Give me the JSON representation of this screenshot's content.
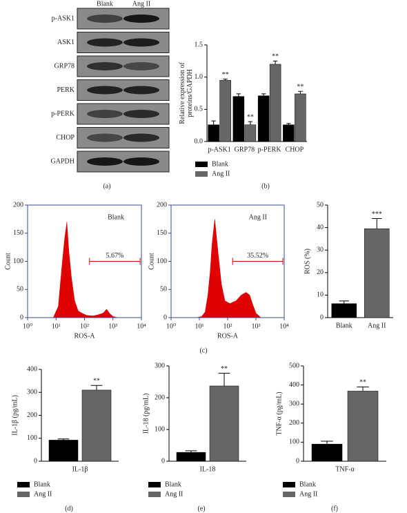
{
  "blot": {
    "columns": [
      "Blank",
      "Ang II"
    ],
    "rows": [
      "p-ASK1",
      "ASK1",
      "GRP78",
      "PERK",
      "p-PERK",
      "CHOP",
      "GAPDH"
    ],
    "caption": "(a)"
  },
  "chart_data": [
    {
      "type": "bar",
      "ylabel": [
        "Relative expression of",
        "proteins/GAPDH"
      ],
      "categories": [
        "p-ASK1",
        "GRP78",
        "p-PERK",
        "CHOP"
      ],
      "series": [
        {
          "name": "Blank",
          "color": "#000000",
          "values": [
            0.26,
            0.7,
            0.71,
            0.26
          ],
          "errors": [
            0.06,
            0.04,
            0.03,
            0.02
          ]
        },
        {
          "name": "Ang II",
          "color": "#666666",
          "values": [
            0.95,
            0.26,
            1.2,
            0.74
          ],
          "errors": [
            0.02,
            0.05,
            0.05,
            0.04
          ],
          "annotation": "**"
        }
      ],
      "ylim": [
        0,
        1.5
      ],
      "yticks": [
        {
          "value": 0,
          "label": "0.0"
        },
        {
          "value": 0.5,
          "label": "0.5"
        },
        {
          "value": 1,
          "label": "1.0"
        },
        {
          "value": 1.5,
          "label": "1.5"
        }
      ],
      "caption": "(b)"
    },
    {
      "type": "area",
      "title": "Blank",
      "xlabel": "ROS-A",
      "ylabel": "Count",
      "color": "#e00000",
      "log_x": true,
      "x": [
        8,
        12,
        16,
        20,
        24,
        28,
        35,
        45,
        60,
        80,
        120,
        200,
        300,
        450,
        600,
        750,
        1000,
        1500
      ],
      "values": [
        0,
        20,
        90,
        140,
        170,
        120,
        70,
        30,
        12,
        8,
        4,
        3,
        5,
        8,
        15,
        8,
        2,
        0
      ],
      "xlim": [
        1,
        10000
      ],
      "xticks": [
        {
          "value": 1,
          "label": "10⁰"
        },
        {
          "value": 10,
          "label": "10¹"
        },
        {
          "value": 100,
          "label": "10²"
        },
        {
          "value": 1000,
          "label": "10³"
        },
        {
          "value": 10000,
          "label": "10⁴"
        }
      ],
      "ylim": [
        0,
        200
      ],
      "yticks": [
        0,
        50,
        100,
        150,
        200
      ],
      "gate": [
        150,
        9000
      ],
      "gate_label": "5.67%"
    },
    {
      "type": "area",
      "title": "Ang II",
      "xlabel": "ROS-A",
      "ylabel": "Count",
      "color": "#e00000",
      "log_x": true,
      "x": [
        8,
        12,
        16,
        20,
        24,
        28,
        35,
        45,
        60,
        80,
        120,
        200,
        300,
        450,
        600,
        750,
        1000,
        1500
      ],
      "values": [
        0,
        2,
        10,
        40,
        80,
        130,
        175,
        120,
        60,
        30,
        25,
        30,
        40,
        45,
        40,
        25,
        8,
        0
      ],
      "xlim": [
        1,
        10000
      ],
      "xticks": [
        {
          "value": 1,
          "label": "10⁰"
        },
        {
          "value": 10,
          "label": "10¹"
        },
        {
          "value": 100,
          "label": "10²"
        },
        {
          "value": 1000,
          "label": "10³"
        },
        {
          "value": 10000,
          "label": "10⁴"
        }
      ],
      "ylim": [
        0,
        200
      ],
      "yticks": [
        0,
        50,
        100,
        150,
        200
      ],
      "gate": [
        150,
        9000
      ],
      "gate_label": "35.52%",
      "caption": "(c)"
    },
    {
      "type": "bar",
      "ylabel": "ROS (%)",
      "categories": [
        "Blank",
        "Ang II"
      ],
      "values": [
        6.2,
        39.5
      ],
      "errors": [
        1.2,
        4.5
      ],
      "colors": [
        "#000000",
        "#666666"
      ],
      "annotations": [
        null,
        "***"
      ],
      "ylim": [
        0,
        50
      ],
      "yticks": [
        0,
        10,
        20,
        30,
        40,
        50
      ]
    },
    {
      "type": "bar",
      "ylabel": "IL-1β (pg/mL)",
      "categories": [
        "IL-1β"
      ],
      "series": [
        {
          "name": "Blank",
          "color": "#000000",
          "values": [
            92
          ],
          "errors": [
            5
          ]
        },
        {
          "name": "Ang II",
          "color": "#666666",
          "values": [
            310
          ],
          "errors": [
            20
          ],
          "annotation": "**"
        }
      ],
      "ylim": [
        0,
        400
      ],
      "yticks": [
        0,
        100,
        200,
        300,
        400
      ],
      "caption": "(d)"
    },
    {
      "type": "bar",
      "ylabel": "IL-18 (pg/mL)",
      "categories": [
        "IL-18"
      ],
      "series": [
        {
          "name": "Blank",
          "color": "#000000",
          "values": [
            28
          ],
          "errors": [
            5
          ]
        },
        {
          "name": "Ang II",
          "color": "#666666",
          "values": [
            237
          ],
          "errors": [
            40
          ],
          "annotation": "**"
        }
      ],
      "ylim": [
        0,
        300
      ],
      "yticks": [
        0,
        100,
        200,
        300
      ],
      "caption": "(e)"
    },
    {
      "type": "bar",
      "ylabel": "TNF-α (pg/mL)",
      "categories": [
        "TNF-α"
      ],
      "series": [
        {
          "name": "Blank",
          "color": "#000000",
          "values": [
            90
          ],
          "errors": [
            15
          ]
        },
        {
          "name": "Ang II",
          "color": "#666666",
          "values": [
            368
          ],
          "errors": [
            22
          ],
          "annotation": "**"
        }
      ],
      "ylim": [
        0,
        500
      ],
      "yticks": [
        0,
        100,
        200,
        300,
        400,
        500
      ],
      "caption": "(f)"
    }
  ]
}
